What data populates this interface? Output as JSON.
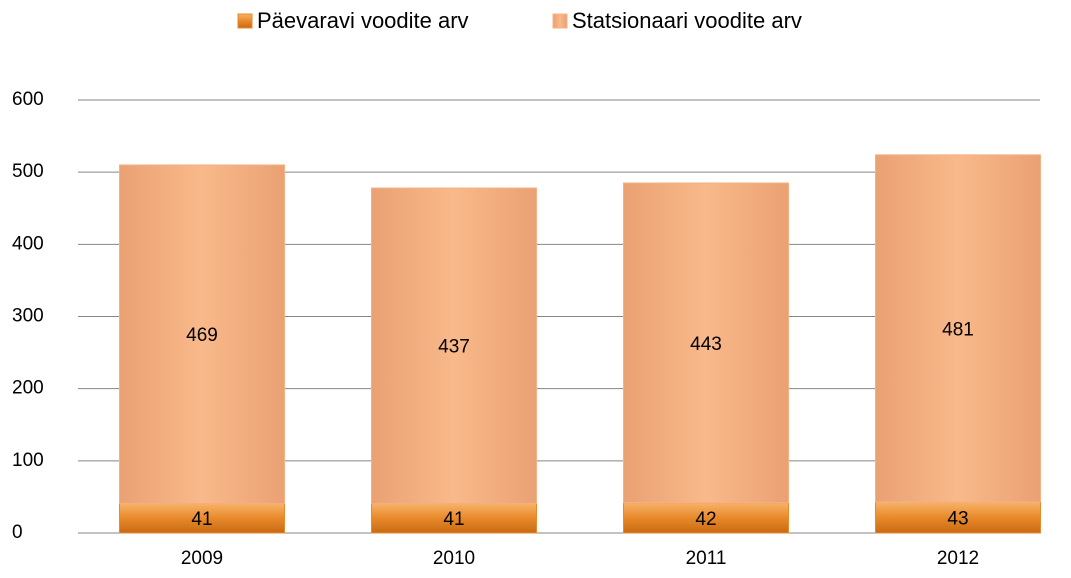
{
  "chart_data": {
    "type": "stacked_bar",
    "categories": [
      "2009",
      "2010",
      "2011",
      "2012"
    ],
    "series": [
      {
        "name": "Päevaravi voodite arv",
        "color": "#e8892a",
        "values": [
          41,
          41,
          42,
          43
        ]
      },
      {
        "name": "Statsionaari voodite arv",
        "color": "#f6b183",
        "values": [
          469,
          437,
          443,
          481
        ]
      }
    ],
    "ylim": [
      0,
      600
    ],
    "yticks": [
      0,
      100,
      200,
      300,
      400,
      500,
      600
    ],
    "grid": true,
    "legend": "top"
  }
}
